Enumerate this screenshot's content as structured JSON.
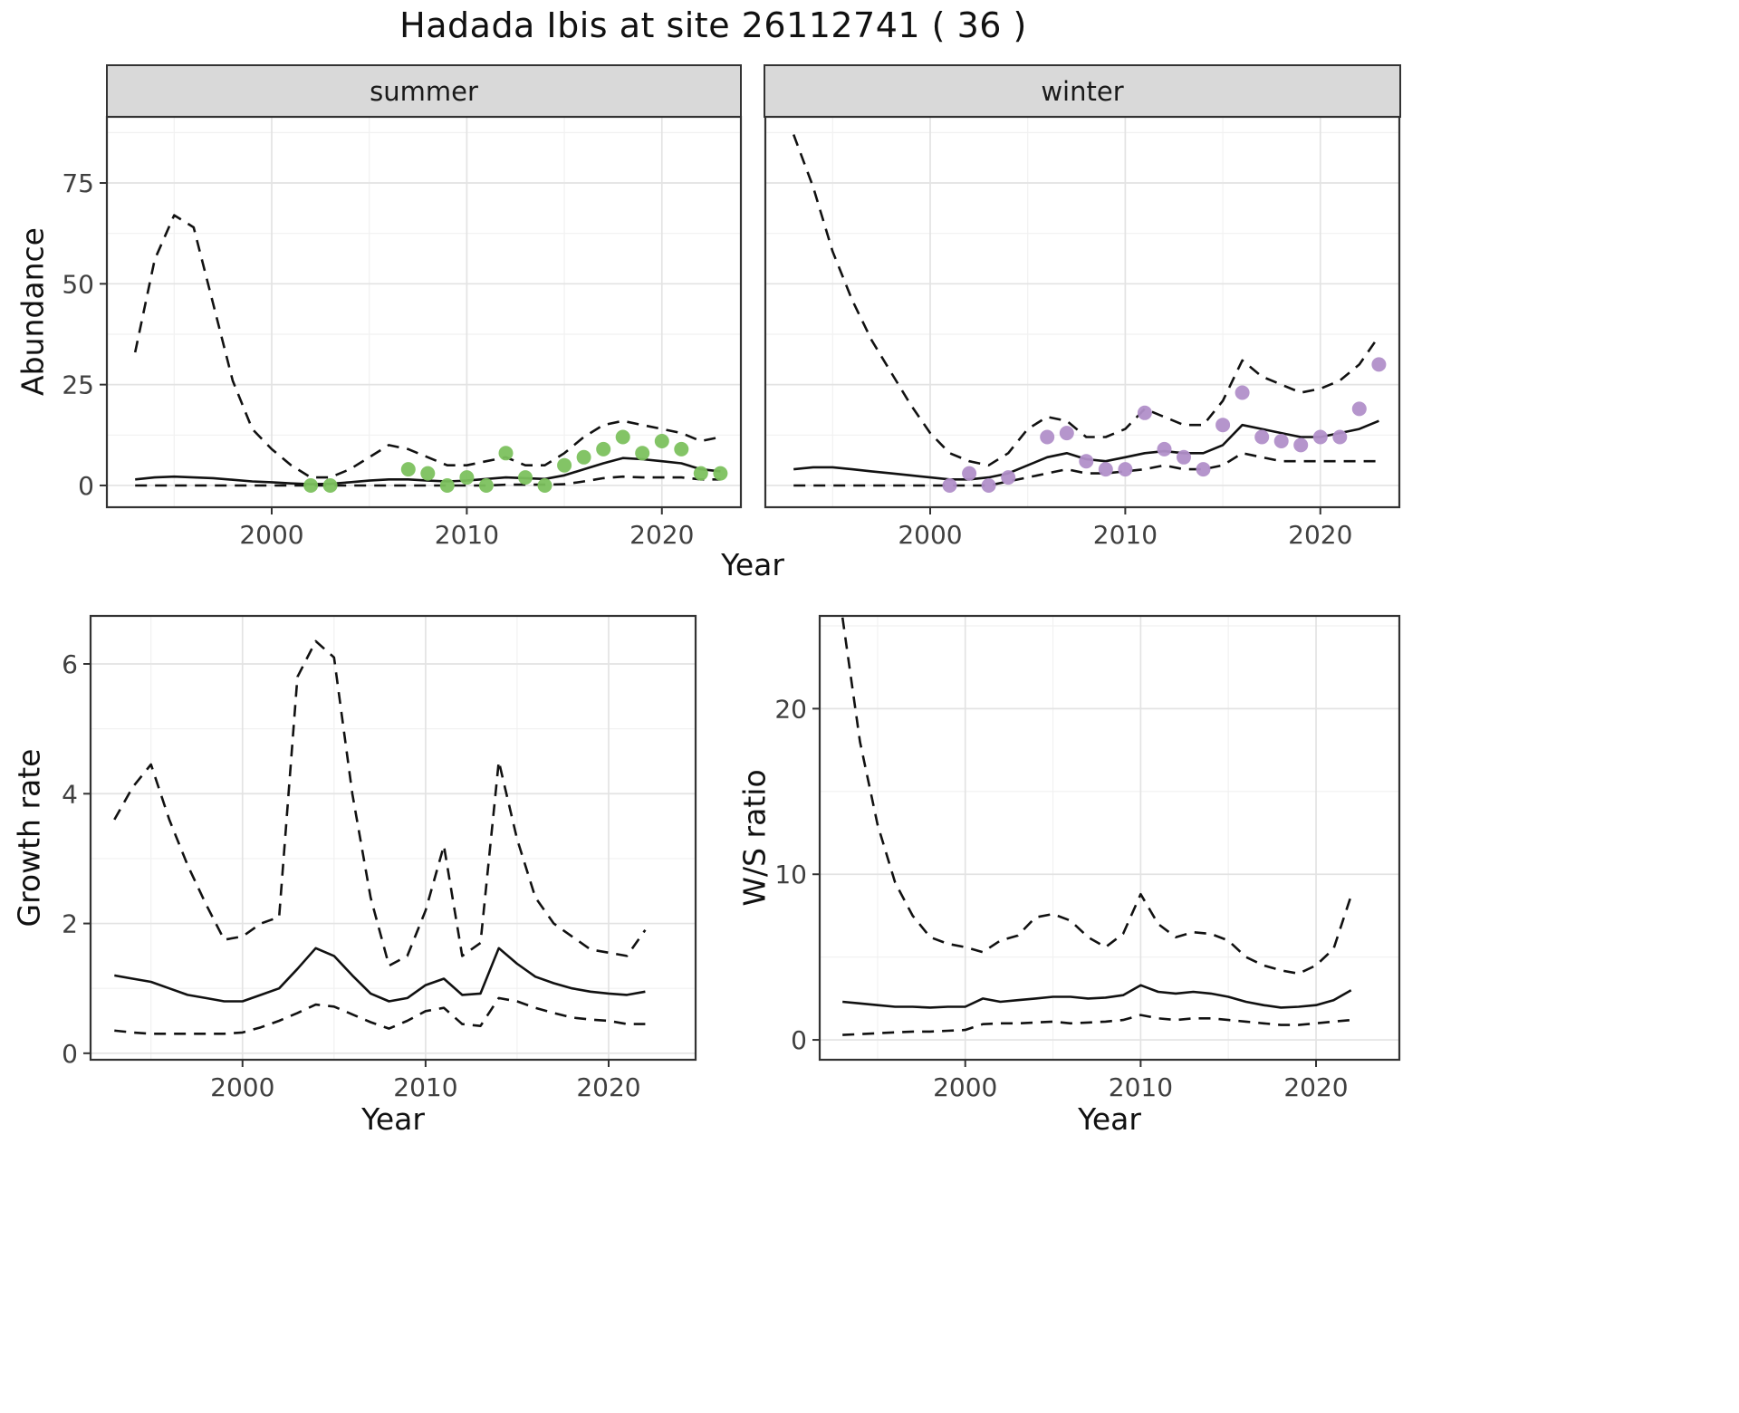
{
  "title": "Hadada Ibis at site 26112741 ( 36 )",
  "labels": {
    "abundance_y": "Abundance",
    "shared_x": "Year",
    "growth_y": "Growth rate",
    "growth_x": "Year",
    "ws_y": "W/S ratio",
    "ws_x": "Year",
    "facet_summer": "summer",
    "facet_winter": "winter"
  },
  "colors": {
    "summer_points": "#7cc15e",
    "winter_points": "#b18fc9",
    "line": "#111111",
    "grid_major": "#e3e3e3",
    "grid_minor": "#f1f1f1",
    "strip_bg": "#d9d9d9",
    "panel_border": "#333333",
    "tick_text": "#404040"
  },
  "chart_data": [
    {
      "id": "abundance-summer",
      "type": "line",
      "facet": "summer",
      "xlabel": "Year",
      "ylabel": "Abundance",
      "xlim": [
        1991.55,
        2024.05
      ],
      "ylim": [
        -5.4,
        91.4
      ],
      "xticks": [
        2000,
        2010,
        2020
      ],
      "yticks": [
        0,
        25,
        50,
        75
      ],
      "xminor": [
        1995,
        2005,
        2015
      ],
      "yminor": [
        12.5,
        37.5,
        62.5,
        87.5
      ],
      "show_ylabels": true,
      "x": [
        1993,
        1994,
        1995,
        1996,
        1997,
        1998,
        1999,
        2000,
        2001,
        2002,
        2003,
        2004,
        2005,
        2006,
        2007,
        2008,
        2009,
        2010,
        2011,
        2012,
        2013,
        2014,
        2015,
        2016,
        2017,
        2018,
        2019,
        2020,
        2021,
        2022,
        2023
      ],
      "series": [
        {
          "name": "upper_ci",
          "style": "dashed",
          "values": [
            33,
            56,
            67,
            64,
            45,
            26,
            14,
            9,
            5,
            2,
            2,
            4,
            7,
            10,
            9,
            7,
            5,
            5,
            6,
            7,
            5,
            5,
            8,
            12,
            15,
            16,
            15,
            14,
            13,
            11,
            12
          ]
        },
        {
          "name": "median",
          "style": "solid",
          "values": [
            1.5,
            2,
            2.2,
            2,
            1.8,
            1.4,
            1,
            0.8,
            0.5,
            0.3,
            0.4,
            0.8,
            1.2,
            1.5,
            1.5,
            1.2,
            1,
            1.2,
            1.6,
            2,
            1.8,
            1.6,
            2.5,
            4,
            5.5,
            6.8,
            6.5,
            6,
            5.5,
            4,
            3.5
          ]
        },
        {
          "name": "lower_ci",
          "style": "dashed",
          "values": [
            0,
            0,
            0,
            0,
            0,
            0,
            0,
            0,
            0,
            0,
            0,
            0,
            0,
            0,
            0,
            0,
            0,
            0,
            0,
            0.2,
            0.2,
            0.2,
            0.3,
            1,
            1.8,
            2.2,
            2,
            2,
            2,
            1.5,
            1.5
          ]
        }
      ],
      "points": {
        "name": "observed-counts",
        "color_key": "summer_points",
        "x": [
          2002,
          2003,
          2007,
          2008,
          2009,
          2010,
          2011,
          2012,
          2013,
          2014,
          2015,
          2016,
          2017,
          2018,
          2019,
          2020,
          2021,
          2022,
          2023
        ],
        "y": [
          0,
          0,
          4,
          3,
          0,
          2,
          0,
          8,
          2,
          0,
          5,
          7,
          9,
          12,
          8,
          11,
          9,
          3,
          3
        ]
      }
    },
    {
      "id": "abundance-winter",
      "type": "line",
      "facet": "winter",
      "xlabel": "Year",
      "ylabel": "Abundance",
      "xlim": [
        1991.55,
        2024.05
      ],
      "ylim": [
        -5.4,
        91.4
      ],
      "xticks": [
        2000,
        2010,
        2020
      ],
      "yticks": [
        0,
        25,
        50,
        75
      ],
      "xminor": [
        1995,
        2005,
        2015
      ],
      "yminor": [
        12.5,
        37.5,
        62.5,
        87.5
      ],
      "show_ylabels": false,
      "x": [
        1993,
        1994,
        1995,
        1996,
        1997,
        1998,
        1999,
        2000,
        2001,
        2002,
        2003,
        2004,
        2005,
        2006,
        2007,
        2008,
        2009,
        2010,
        2011,
        2012,
        2013,
        2014,
        2015,
        2016,
        2017,
        2018,
        2019,
        2020,
        2021,
        2022,
        2023
      ],
      "series": [
        {
          "name": "upper_ci",
          "style": "dashed",
          "values": [
            87,
            74,
            58,
            46,
            36,
            28,
            20,
            13,
            8,
            6,
            5,
            8,
            14,
            17,
            16,
            12,
            12,
            14,
            19,
            17,
            15,
            15,
            21,
            31,
            27,
            25,
            23,
            24,
            26,
            30,
            37
          ]
        },
        {
          "name": "median",
          "style": "solid",
          "values": [
            4,
            4.5,
            4.5,
            4,
            3.5,
            3,
            2.5,
            2,
            1.5,
            1.5,
            2,
            3,
            5,
            7,
            8,
            6.5,
            6,
            7,
            8,
            8.5,
            8,
            8,
            10,
            15,
            14,
            13,
            12,
            12,
            13,
            14,
            16
          ]
        },
        {
          "name": "lower_ci",
          "style": "dashed",
          "values": [
            0,
            0,
            0,
            0,
            0,
            0,
            0,
            0,
            0,
            0,
            0,
            1,
            2,
            3,
            4,
            3,
            3,
            3.5,
            4,
            5,
            4,
            4,
            5,
            8,
            7,
            6,
            6,
            6,
            6,
            6,
            6
          ]
        }
      ],
      "points": {
        "name": "observed-counts",
        "color_key": "winter_points",
        "x": [
          2001,
          2002,
          2003,
          2004,
          2006,
          2007,
          2008,
          2009,
          2010,
          2011,
          2012,
          2013,
          2014,
          2015,
          2016,
          2017,
          2018,
          2019,
          2020,
          2021,
          2022,
          2023
        ],
        "y": [
          0,
          3,
          0,
          2,
          12,
          13,
          6,
          4,
          4,
          18,
          9,
          7,
          4,
          15,
          23,
          12,
          11,
          10,
          12,
          12,
          19,
          30
        ]
      }
    },
    {
      "id": "growth-rate",
      "type": "line",
      "xlabel": "Year",
      "ylabel": "Growth rate",
      "xlim": [
        1991.7,
        2024.75
      ],
      "ylim": [
        -0.1,
        6.74
      ],
      "xticks": [
        2000,
        2010,
        2020
      ],
      "yticks": [
        0,
        2,
        4,
        6
      ],
      "xminor": [
        1995,
        2005,
        2015
      ],
      "yminor": [
        1,
        3,
        5
      ],
      "show_ylabels": true,
      "x": [
        1993,
        1994,
        1995,
        1996,
        1997,
        1998,
        1999,
        2000,
        2001,
        2002,
        2003,
        2004,
        2005,
        2006,
        2007,
        2008,
        2009,
        2010,
        2011,
        2012,
        2013,
        2014,
        2015,
        2016,
        2017,
        2018,
        2019,
        2020,
        2021,
        2022
      ],
      "series": [
        {
          "name": "upper_ci",
          "style": "dashed",
          "values": [
            3.6,
            4.1,
            4.45,
            3.6,
            2.9,
            2.3,
            1.75,
            1.8,
            2.0,
            2.1,
            5.8,
            6.35,
            6.1,
            4.0,
            2.4,
            1.35,
            1.5,
            2.2,
            3.2,
            1.5,
            1.7,
            4.5,
            3.3,
            2.4,
            2.0,
            1.8,
            1.6,
            1.55,
            1.5,
            1.9
          ]
        },
        {
          "name": "median",
          "style": "solid",
          "values": [
            1.2,
            1.15,
            1.1,
            1.0,
            0.9,
            0.85,
            0.8,
            0.8,
            0.9,
            1.0,
            1.3,
            1.62,
            1.5,
            1.2,
            0.92,
            0.8,
            0.85,
            1.05,
            1.15,
            0.9,
            0.92,
            1.62,
            1.38,
            1.18,
            1.08,
            1.0,
            0.95,
            0.92,
            0.9,
            0.95
          ]
        },
        {
          "name": "lower_ci",
          "style": "dashed",
          "values": [
            0.35,
            0.32,
            0.3,
            0.3,
            0.3,
            0.3,
            0.3,
            0.32,
            0.4,
            0.5,
            0.62,
            0.75,
            0.72,
            0.6,
            0.48,
            0.38,
            0.5,
            0.65,
            0.7,
            0.45,
            0.42,
            0.85,
            0.8,
            0.7,
            0.62,
            0.55,
            0.52,
            0.5,
            0.45,
            0.45
          ]
        }
      ]
    },
    {
      "id": "ws-ratio",
      "type": "line",
      "xlabel": "Year",
      "ylabel": "W/S ratio",
      "xlim": [
        1991.7,
        2024.75
      ],
      "ylim": [
        -1.2,
        25.6
      ],
      "xticks": [
        2000,
        2010,
        2020
      ],
      "yticks": [
        0,
        10,
        20
      ],
      "xminor": [
        1995,
        2005,
        2015
      ],
      "yminor": [
        5,
        15,
        25
      ],
      "show_ylabels": true,
      "x": [
        1993,
        1994,
        1995,
        1996,
        1997,
        1998,
        1999,
        2000,
        2001,
        2002,
        2003,
        2004,
        2005,
        2006,
        2007,
        2008,
        2009,
        2010,
        2011,
        2012,
        2013,
        2014,
        2015,
        2016,
        2017,
        2018,
        2019,
        2020,
        2021,
        2022
      ],
      "series": [
        {
          "name": "upper_ci",
          "style": "dashed",
          "values": [
            25.5,
            18,
            13,
            9.5,
            7.5,
            6.2,
            5.8,
            5.6,
            5.3,
            6.0,
            6.3,
            7.4,
            7.6,
            7.2,
            6.2,
            5.6,
            6.4,
            8.8,
            7.0,
            6.2,
            6.5,
            6.4,
            6.0,
            5.0,
            4.5,
            4.2,
            4.0,
            4.5,
            5.5,
            8.7
          ]
        },
        {
          "name": "median",
          "style": "solid",
          "values": [
            2.3,
            2.2,
            2.1,
            2.0,
            2.0,
            1.95,
            2.0,
            2.0,
            2.5,
            2.3,
            2.4,
            2.5,
            2.6,
            2.6,
            2.5,
            2.55,
            2.7,
            3.3,
            2.9,
            2.8,
            2.9,
            2.8,
            2.6,
            2.3,
            2.1,
            1.95,
            2.0,
            2.1,
            2.4,
            3.0
          ]
        },
        {
          "name": "lower_ci",
          "style": "dashed",
          "values": [
            0.3,
            0.35,
            0.4,
            0.45,
            0.5,
            0.5,
            0.55,
            0.6,
            0.95,
            1.0,
            1.0,
            1.05,
            1.1,
            1.0,
            1.05,
            1.1,
            1.2,
            1.5,
            1.3,
            1.2,
            1.3,
            1.3,
            1.2,
            1.1,
            1.0,
            0.9,
            0.9,
            1.0,
            1.1,
            1.2
          ]
        }
      ]
    }
  ]
}
